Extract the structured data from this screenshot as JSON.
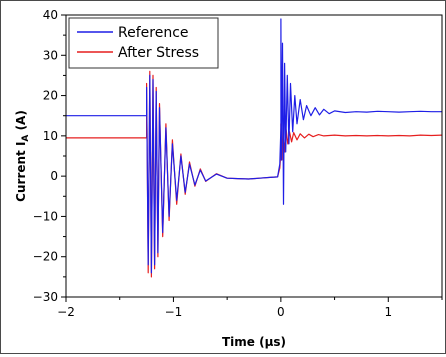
{
  "chart_data": {
    "type": "line",
    "title": "",
    "xlabel": "Time (µs)",
    "ylabel_main": "Current I",
    "ylabel_sub": "A",
    "ylabel_unit": " (A)",
    "xlim": [
      -2.0,
      1.5
    ],
    "ylim": [
      -30,
      40
    ],
    "xticks": [
      -2,
      -1,
      0,
      1
    ],
    "xtick_labels": [
      "−2",
      "−1",
      "0",
      "1"
    ],
    "yticks": [
      -30,
      -20,
      -10,
      0,
      10,
      20,
      30,
      40
    ],
    "ytick_labels": [
      "−30",
      "−20",
      "−10",
      "0",
      "10",
      "20",
      "30",
      "40"
    ],
    "grid": false,
    "legend_position": "top-left",
    "series": [
      {
        "name": "Reference",
        "color": "#1f1fe6",
        "x": [
          -2.0,
          -1.25,
          -1.25,
          -1.235,
          -1.22,
          -1.205,
          -1.19,
          -1.175,
          -1.16,
          -1.145,
          -1.13,
          -1.1,
          -1.07,
          -1.04,
          -1.01,
          -0.97,
          -0.93,
          -0.89,
          -0.85,
          -0.8,
          -0.75,
          -0.7,
          -0.6,
          -0.5,
          -0.4,
          -0.3,
          -0.2,
          -0.1,
          -0.03,
          -0.01,
          0.0,
          0.0,
          0.005,
          0.015,
          0.025,
          0.035,
          0.045,
          0.06,
          0.075,
          0.09,
          0.11,
          0.13,
          0.15,
          0.18,
          0.21,
          0.24,
          0.28,
          0.32,
          0.36,
          0.4,
          0.45,
          0.5,
          0.6,
          0.7,
          0.8,
          0.9,
          1.0,
          1.1,
          1.2,
          1.3,
          1.4,
          1.5
        ],
        "values": [
          15.0,
          15.0,
          22.0,
          -22.0,
          25.0,
          -24.0,
          24.0,
          -22.0,
          21.0,
          -19.0,
          17.0,
          -14.0,
          12.0,
          -10.0,
          8.0,
          -6.0,
          5.0,
          -4.0,
          3.0,
          -2.2,
          1.5,
          -1.2,
          0.5,
          -0.5,
          -0.6,
          -0.7,
          -0.5,
          -0.3,
          -0.2,
          3.0,
          12.0,
          39.0,
          4.0,
          33.0,
          -7.0,
          28.0,
          6.0,
          25.0,
          8.0,
          23.0,
          11.0,
          20.0,
          13.0,
          19.0,
          14.0,
          17.5,
          15.0,
          17.0,
          15.2,
          16.6,
          15.5,
          16.2,
          15.8,
          16.0,
          15.9,
          16.1,
          16.0,
          15.9,
          16.0,
          16.1,
          16.0,
          16.0
        ]
      },
      {
        "name": "After Stress",
        "color": "#e61f1f",
        "x": [
          -2.0,
          -1.25,
          -1.25,
          -1.235,
          -1.22,
          -1.205,
          -1.19,
          -1.175,
          -1.16,
          -1.145,
          -1.13,
          -1.1,
          -1.07,
          -1.04,
          -1.01,
          -0.97,
          -0.93,
          -0.89,
          -0.85,
          -0.8,
          -0.75,
          -0.7,
          -0.6,
          -0.5,
          -0.4,
          -0.3,
          -0.2,
          -0.1,
          -0.03,
          -0.01,
          0.0,
          0.0,
          0.01,
          0.02,
          0.035,
          0.05,
          0.065,
          0.08,
          0.1,
          0.12,
          0.15,
          0.18,
          0.22,
          0.26,
          0.3,
          0.35,
          0.4,
          0.5,
          0.6,
          0.7,
          0.8,
          0.9,
          1.0,
          1.1,
          1.2,
          1.3,
          1.4,
          1.5
        ],
        "values": [
          9.5,
          9.5,
          23.0,
          -24.0,
          26.0,
          -25.0,
          25.0,
          -23.0,
          22.0,
          -20.0,
          18.0,
          -15.0,
          13.0,
          -11.0,
          9.0,
          -7.0,
          5.5,
          -4.5,
          3.5,
          -2.5,
          1.8,
          -1.3,
          0.6,
          -0.5,
          -0.6,
          -0.7,
          -0.5,
          -0.3,
          -0.2,
          2.0,
          6.0,
          13.0,
          4.0,
          12.0,
          6.0,
          11.5,
          8.0,
          11.0,
          8.5,
          10.8,
          9.0,
          10.5,
          9.5,
          10.4,
          9.8,
          10.3,
          10.0,
          10.2,
          10.0,
          10.1,
          10.0,
          10.1,
          10.0,
          10.1,
          10.0,
          10.2,
          10.1,
          10.2
        ]
      }
    ]
  }
}
